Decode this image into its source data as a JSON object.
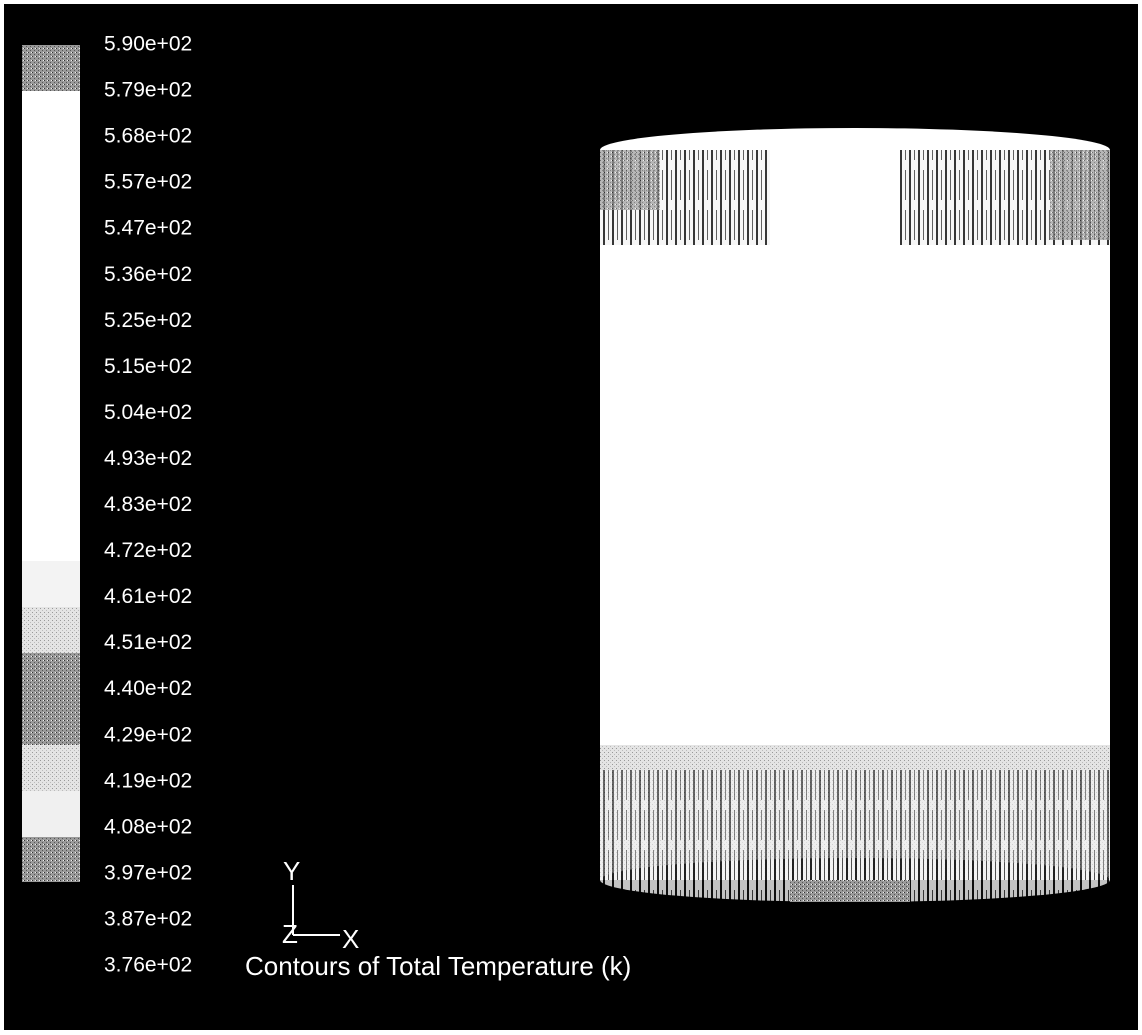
{
  "legend": {
    "labels": [
      "5.90e+02",
      "5.79e+02",
      "5.68e+02",
      "5.57e+02",
      "5.47e+02",
      "5.36e+02",
      "5.25e+02",
      "5.15e+02",
      "5.04e+02",
      "4.93e+02",
      "4.83e+02",
      "4.72e+02",
      "4.61e+02",
      "4.51e+02",
      "4.40e+02",
      "4.29e+02",
      "4.19e+02",
      "4.08e+02",
      "3.97e+02",
      "3.87e+02",
      "3.76e+02"
    ]
  },
  "axes": {
    "y": "Y",
    "z": "Z",
    "x": "X"
  },
  "title": "Contours of Total Temperature (k)"
}
